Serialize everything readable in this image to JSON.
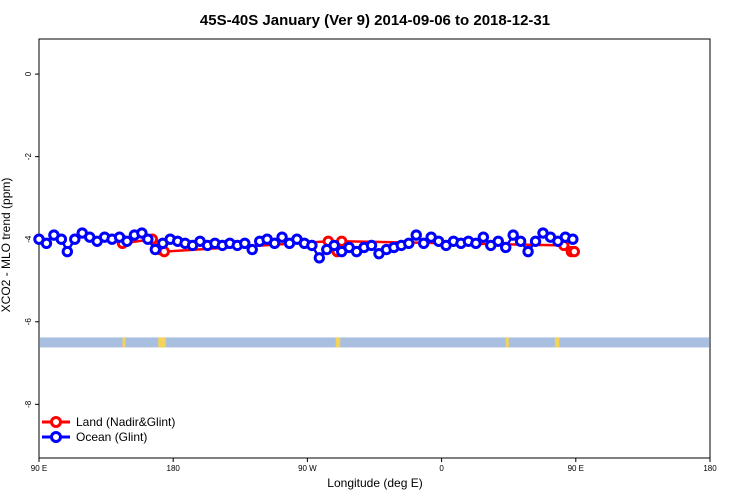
{
  "chart_data": {
    "type": "line",
    "title": "45S-40S January (Ver 9)   2014-09-06 to 2018-12-31",
    "xlabel": "Longitude (deg E)",
    "ylabel": "XCO2 - MLO trend (ppm)",
    "xlim": [
      90,
      450
    ],
    "ylim": [
      -9.3,
      0.85
    ],
    "x_ticks": [
      {
        "value": 90,
        "label": "90 E"
      },
      {
        "value": 180,
        "label": "180"
      },
      {
        "value": 270,
        "label": "90 W"
      },
      {
        "value": 360,
        "label": "0"
      },
      {
        "value": 450,
        "label": "90 E"
      },
      {
        "value": 540,
        "label": "180"
      }
    ],
    "y_ticks": [
      0,
      -2,
      -4,
      -6,
      -8
    ],
    "x_tick_labels_note": "x axis spans 90 E eastward across the date line to 180",
    "legend": {
      "position": "bottom-left",
      "entries": [
        {
          "label": "Land (Nadir&Glint)",
          "color": "#ff0000"
        },
        {
          "label": "Ocean (Glint)",
          "color": "#0000ff"
        }
      ]
    },
    "land_mask": {
      "y": -6.5,
      "ocean_color": "#a8bfe0",
      "land_color": "#f5d35a",
      "land_segments": [
        [
          146,
          147
        ],
        [
          170,
          175
        ],
        [
          289,
          292
        ],
        [
          403,
          404
        ],
        [
          436,
          439
        ]
      ]
    },
    "series": [
      {
        "name": "Land (Nadir&Glint)",
        "color": "#ff0000",
        "x": [
          145,
          146,
          166,
          171,
          174,
          284,
          290,
          293,
          442,
          447,
          449
        ],
        "y": [
          -4.0,
          -4.1,
          -4.0,
          -4.25,
          -4.3,
          -4.05,
          -4.3,
          -4.05,
          -4.15,
          -4.3,
          -4.3
        ]
      },
      {
        "name": "Ocean (Glint)",
        "color": "#0000ff",
        "x": [
          90,
          95,
          100,
          105,
          109,
          114,
          119,
          124,
          129,
          134,
          139,
          144,
          149,
          154,
          159,
          163,
          168,
          173,
          178,
          183,
          188,
          193,
          198,
          203,
          208,
          213,
          218,
          223,
          228,
          233,
          238,
          243,
          248,
          253,
          258,
          263,
          268,
          273,
          278,
          283,
          288,
          293,
          298,
          303,
          308,
          313,
          318,
          323,
          328,
          333,
          338,
          343,
          348,
          353,
          358,
          363,
          368,
          373,
          378,
          383,
          388,
          393,
          398,
          403,
          408,
          413,
          418,
          423,
          428,
          433,
          438,
          443,
          448
        ],
        "y": [
          -4.0,
          -4.1,
          -3.9,
          -4.0,
          -4.3,
          -4.0,
          -3.85,
          -3.95,
          -4.05,
          -3.95,
          -4.0,
          -3.95,
          -4.05,
          -3.9,
          -3.85,
          -4.0,
          -4.25,
          -4.1,
          -4.0,
          -4.05,
          -4.1,
          -4.15,
          -4.05,
          -4.15,
          -4.1,
          -4.15,
          -4.1,
          -4.15,
          -4.1,
          -4.25,
          -4.05,
          -4.0,
          -4.1,
          -3.95,
          -4.1,
          -4.0,
          -4.1,
          -4.15,
          -4.45,
          -4.25,
          -4.15,
          -4.3,
          -4.2,
          -4.3,
          -4.2,
          -4.15,
          -4.35,
          -4.25,
          -4.2,
          -4.15,
          -4.1,
          -3.9,
          -4.1,
          -3.95,
          -4.05,
          -4.15,
          -4.05,
          -4.1,
          -4.05,
          -4.1,
          -3.95,
          -4.15,
          -4.05,
          -4.2,
          -3.9,
          -4.05,
          -4.3,
          -4.05,
          -3.85,
          -3.95,
          -4.05,
          -3.95,
          -4.0
        ]
      }
    ]
  }
}
